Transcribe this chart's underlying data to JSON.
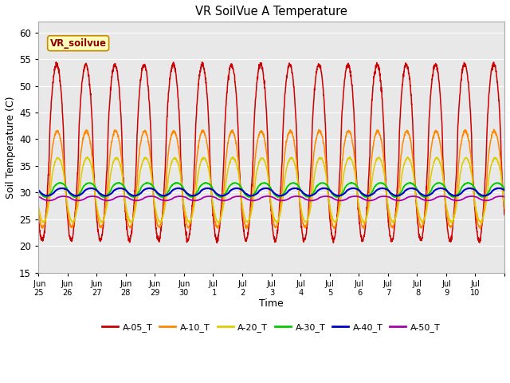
{
  "title": "VR SoilVue A Temperature",
  "xlabel": "Time",
  "ylabel": "Soil Temperature (C)",
  "ylim": [
    15,
    62
  ],
  "yticks": [
    15,
    20,
    25,
    30,
    35,
    40,
    45,
    50,
    55,
    60
  ],
  "plot_bg_color": "#e8e8e8",
  "fig_bg_color": "#ffffff",
  "grid_color": "#ffffff",
  "watermark_text": "VR_soilvue",
  "series": {
    "A-05_T": {
      "color": "#cc0000",
      "amplitude": 16.5,
      "base": 37.5,
      "phase_shift": 0.38
    },
    "A-10_T": {
      "color": "#ff8800",
      "amplitude": 9.0,
      "base": 32.5,
      "phase_shift": 0.4
    },
    "A-20_T": {
      "color": "#ddcc00",
      "amplitude": 6.0,
      "base": 30.5,
      "phase_shift": 0.43
    },
    "A-30_T": {
      "color": "#00cc00",
      "amplitude": 1.3,
      "base": 30.5,
      "phase_shift": 0.5
    },
    "A-40_T": {
      "color": "#0000cc",
      "amplitude": 0.7,
      "base": 30.1,
      "phase_shift": 0.56
    },
    "A-50_T": {
      "color": "#aa00aa",
      "amplitude": 0.4,
      "base": 28.9,
      "phase_shift": 0.62
    }
  },
  "xtick_labels": [
    "Jun",
    "25Jun",
    "26Jun",
    "27Jun",
    "28Jun",
    "29Jun 30",
    "Jul 1",
    "Jul 2",
    "Jul 3",
    "Jul 4",
    "Jul 5",
    "Jul 6",
    "Jul 7",
    "Jul 8",
    "Jul 9",
    "Jul 10"
  ],
  "xtick_labels_clean": [
    " Jun\n25",
    "Jun\n26",
    "Jun\n27",
    "Jun\n28",
    "Jun\n29",
    "Jun\n30",
    "Jul\n 1",
    "Jul\n 2",
    "Jul\n 3",
    "Jul\n 4",
    "Jul\n 5",
    "Jul\n 6",
    "Jul\n 7",
    "Jul\n 8",
    "Jul\n 9",
    "Jul\n10"
  ],
  "legend_entries": [
    "A-05_T",
    "A-10_T",
    "A-20_T",
    "A-30_T",
    "A-40_T",
    "A-50_T"
  ],
  "legend_colors": [
    "#cc0000",
    "#ff8800",
    "#ddcc00",
    "#00cc00",
    "#0000cc",
    "#aa00aa"
  ]
}
